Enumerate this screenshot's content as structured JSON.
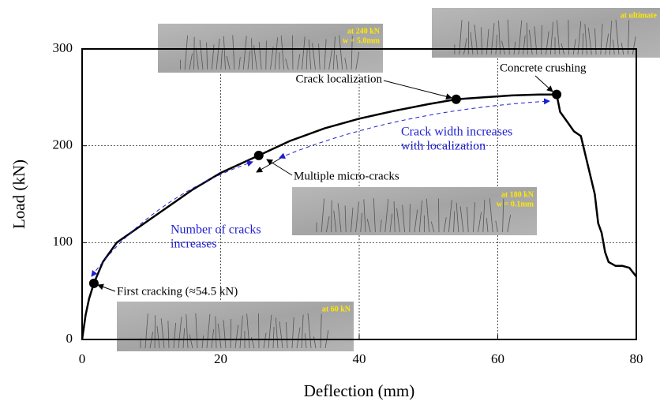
{
  "chart_data": {
    "type": "line",
    "x_label": "Deflection (mm)",
    "y_label": "Load (kN)",
    "xlim": [
      0,
      80
    ],
    "ylim": [
      0,
      300
    ],
    "xticks": [
      0,
      20,
      40,
      60,
      80
    ],
    "yticks": [
      0,
      100,
      200,
      300
    ],
    "grid": true,
    "series": [
      {
        "color": "#000000",
        "x": [
          0,
          0.5,
          1,
          1.7,
          3,
          5,
          8,
          12,
          16,
          20,
          25.5,
          30,
          35,
          40,
          45,
          50,
          54,
          58,
          62,
          66,
          68.5,
          69,
          70,
          71,
          72,
          73,
          74,
          74.5,
          75,
          75.5,
          76,
          77,
          78,
          79,
          80
        ],
        "values": [
          0,
          25,
          42,
          58,
          80,
          100,
          115,
          135,
          155,
          172,
          190,
          205,
          218,
          228,
          236,
          243,
          248,
          250,
          252,
          253,
          253,
          235,
          225,
          215,
          210,
          180,
          150,
          120,
          110,
          90,
          80,
          76,
          76,
          74,
          65
        ]
      },
      {
        "color": "#000000",
        "marker": "circle",
        "x": [
          1.7,
          25.5,
          54,
          68.5
        ],
        "values": [
          58,
          190,
          248,
          253
        ]
      }
    ],
    "annotations": [
      "First cracking (≈54.5 kN)",
      "Multiple micro-cracks",
      "Crack localization",
      "Concrete crushing"
    ],
    "blue_notes": [
      [
        "Number of cracks",
        "increases"
      ],
      [
        "Crack width increases",
        "with localization"
      ]
    ],
    "photo_labels": [
      [
        "at 60 kN"
      ],
      [
        "at 180 kN",
        "w = 0.1mm"
      ],
      [
        "at 240 kN",
        "w = 5.0mm"
      ],
      [
        "at ultimate"
      ]
    ]
  }
}
